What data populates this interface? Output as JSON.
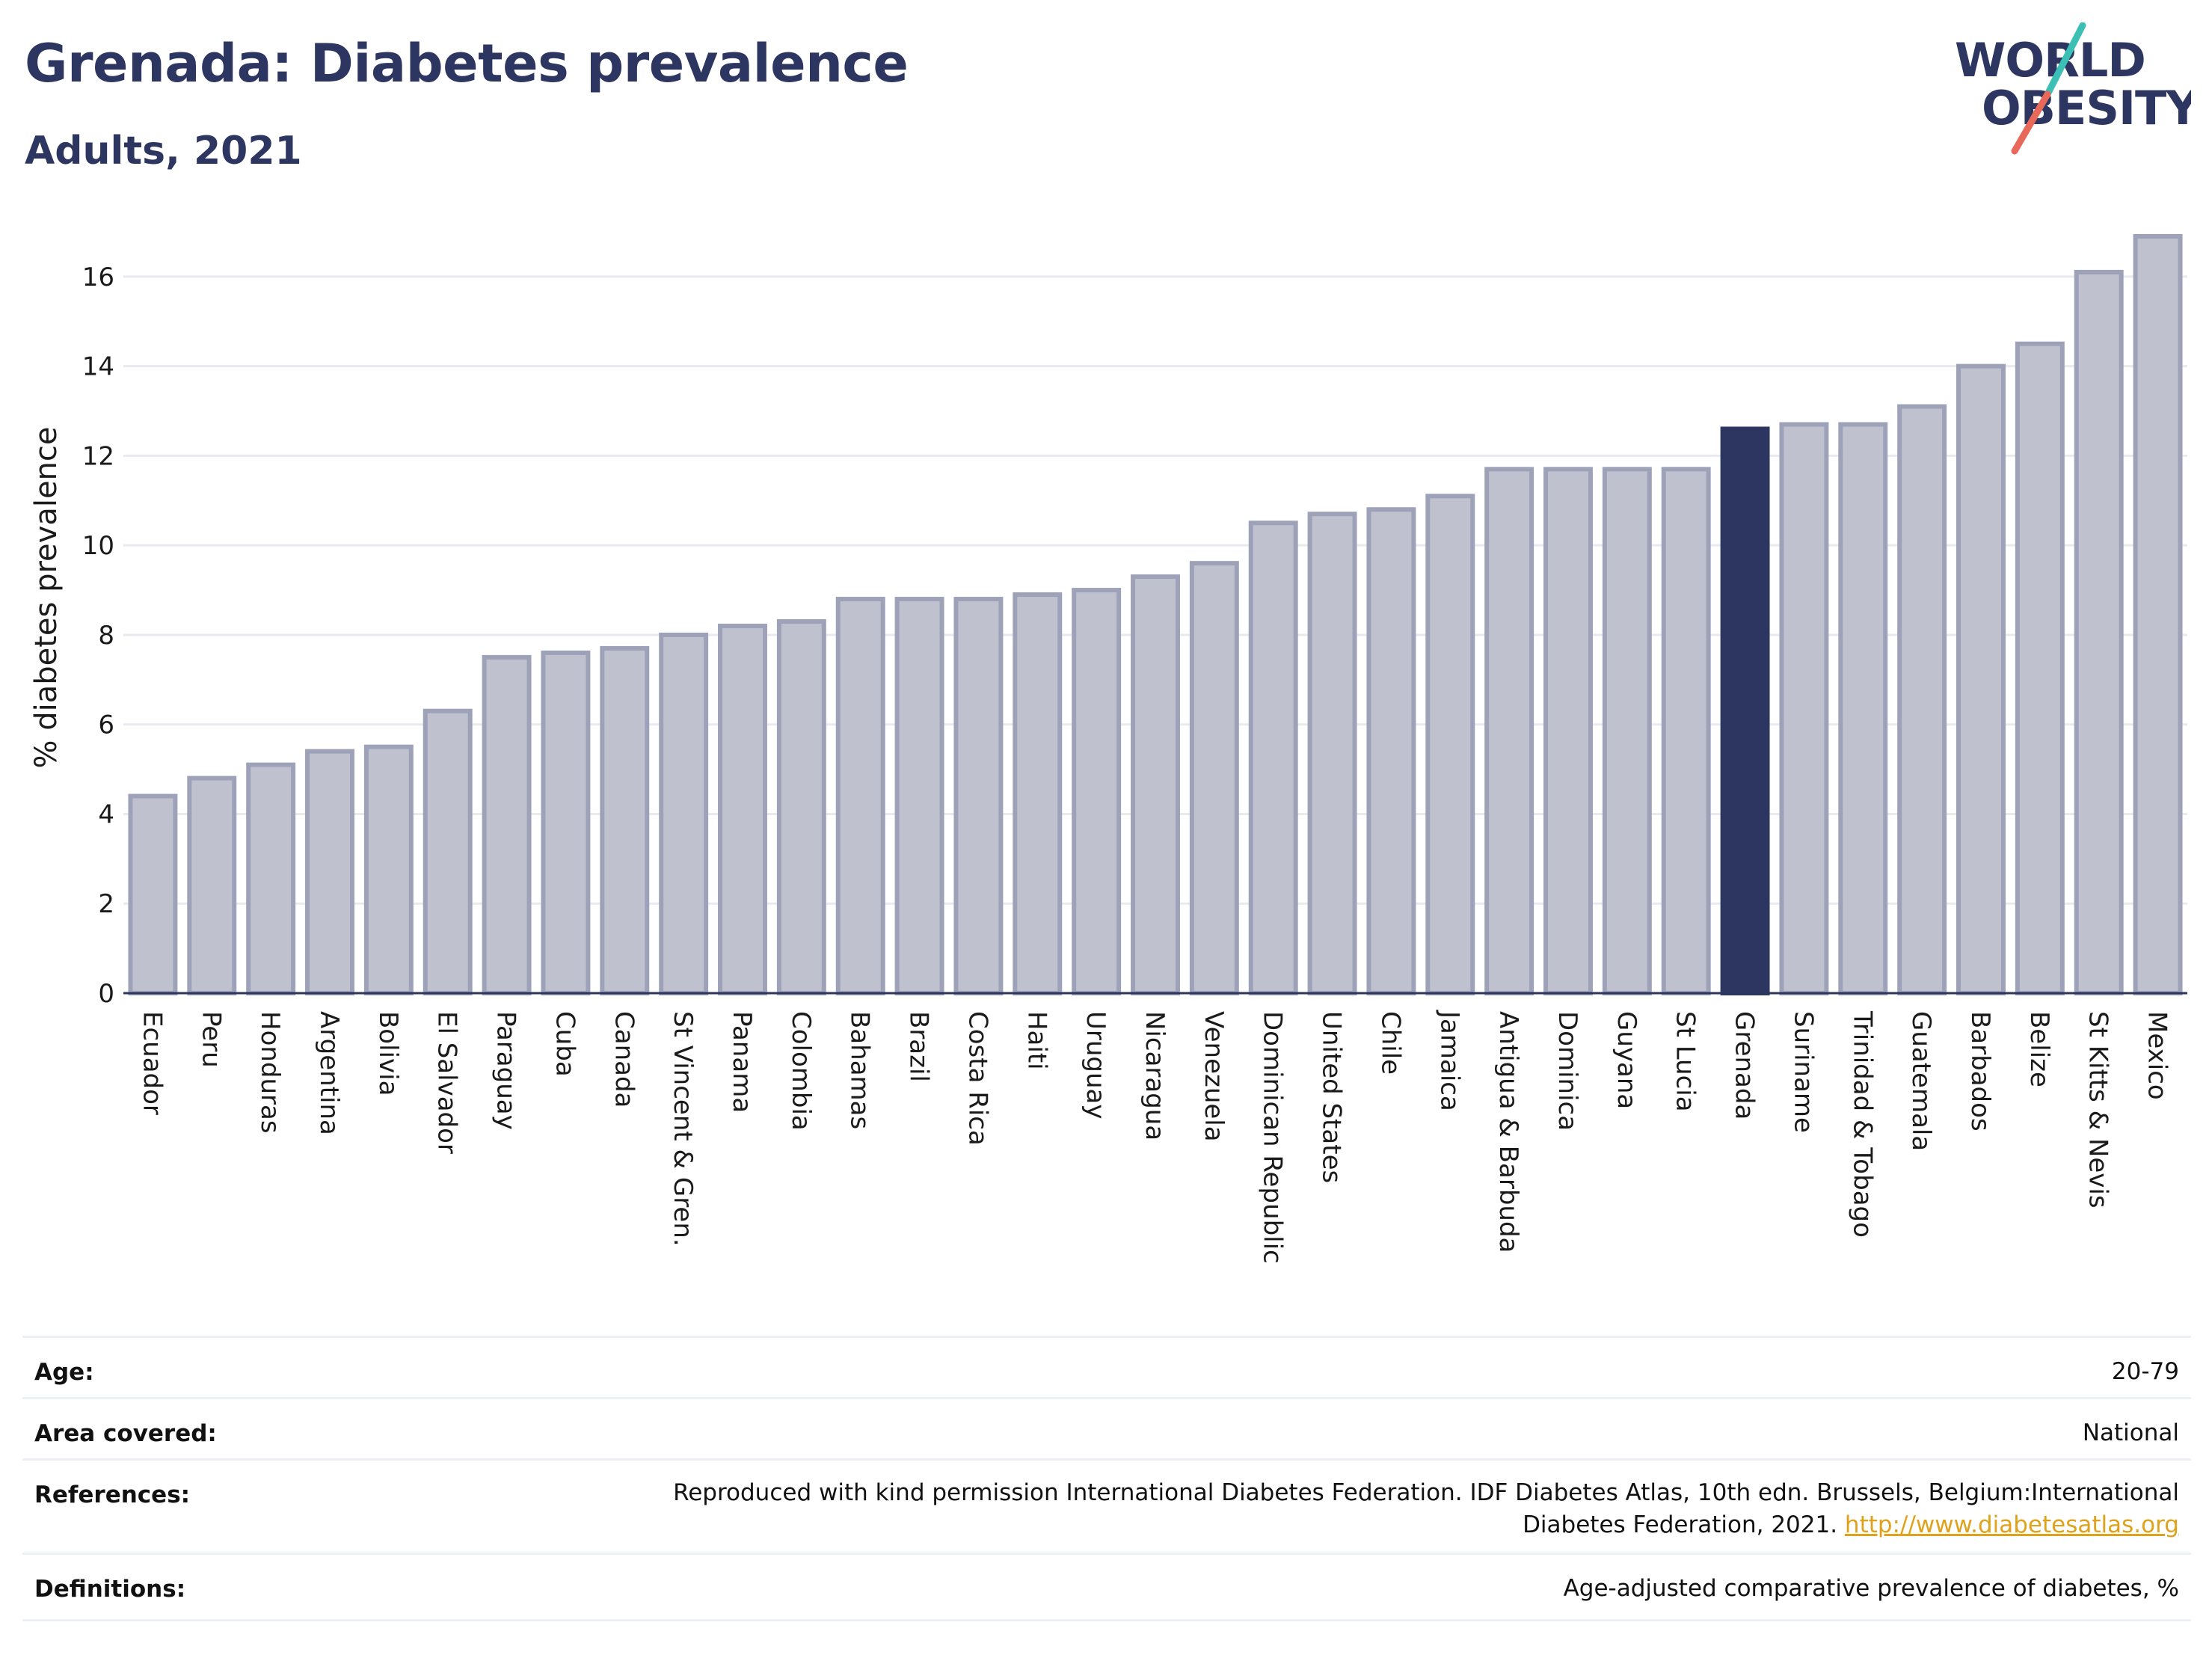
{
  "header": {
    "title": "Grenada: Diabetes prevalence",
    "subtitle": "Adults, 2021"
  },
  "logo": {
    "line1": "WORLD",
    "line2": "OBESITY",
    "colors": {
      "text": "#2d3561",
      "slash_top": "#3cbfb4",
      "slash_bottom": "#e8685a"
    }
  },
  "chart_data": {
    "type": "bar",
    "ylabel": "% diabetes prevalence",
    "xlabel": "",
    "ylim": [
      0,
      17
    ],
    "yticks": [
      0,
      2,
      4,
      6,
      8,
      10,
      12,
      14,
      16
    ],
    "grid": true,
    "highlight": "Grenada",
    "colors": {
      "bar": "#bfc2ce",
      "bar_border": "#9da2b8",
      "highlight": "#2d3561",
      "axis": "#2d3561",
      "grid": "#e8eaf0"
    },
    "categories": [
      "Ecuador",
      "Peru",
      "Honduras",
      "Argentina",
      "Bolivia",
      "El Salvador",
      "Paraguay",
      "Cuba",
      "Canada",
      "St Vincent & Gren.",
      "Panama",
      "Colombia",
      "Bahamas",
      "Brazil",
      "Costa Rica",
      "Haiti",
      "Uruguay",
      "Nicaragua",
      "Venezuela",
      "Dominican Republic",
      "United States",
      "Chile",
      "Jamaica",
      "Antigua & Barbuda",
      "Dominica",
      "Guyana",
      "St Lucia",
      "Grenada",
      "Suriname",
      "Trinidad & Tobago",
      "Guatemala",
      "Barbados",
      "Belize",
      "St Kitts & Nevis",
      "Mexico"
    ],
    "values": [
      4.4,
      4.8,
      5.1,
      5.4,
      5.5,
      6.3,
      7.5,
      7.6,
      7.7,
      8.0,
      8.2,
      8.3,
      8.8,
      8.8,
      8.8,
      8.9,
      9.0,
      9.3,
      9.6,
      10.5,
      10.7,
      10.8,
      11.1,
      11.7,
      11.7,
      11.7,
      11.7,
      12.6,
      12.7,
      12.7,
      13.1,
      14.0,
      14.5,
      16.1,
      16.9
    ]
  },
  "info_table": {
    "rows": [
      {
        "label": "Age:",
        "value": "20-79"
      },
      {
        "label": "Area covered:",
        "value": "National"
      },
      {
        "label": "References:",
        "value": "Reproduced with kind permission International Diabetes Federation.  IDF Diabetes Atlas, 10th edn. Brussels, Belgium:International",
        "value_line2": "Diabetes Federation, 2021.",
        "link": "http://www.diabetesatlas.org"
      },
      {
        "label": "Definitions:",
        "value": "Age-adjusted comparative prevalence of diabetes, %"
      }
    ]
  }
}
